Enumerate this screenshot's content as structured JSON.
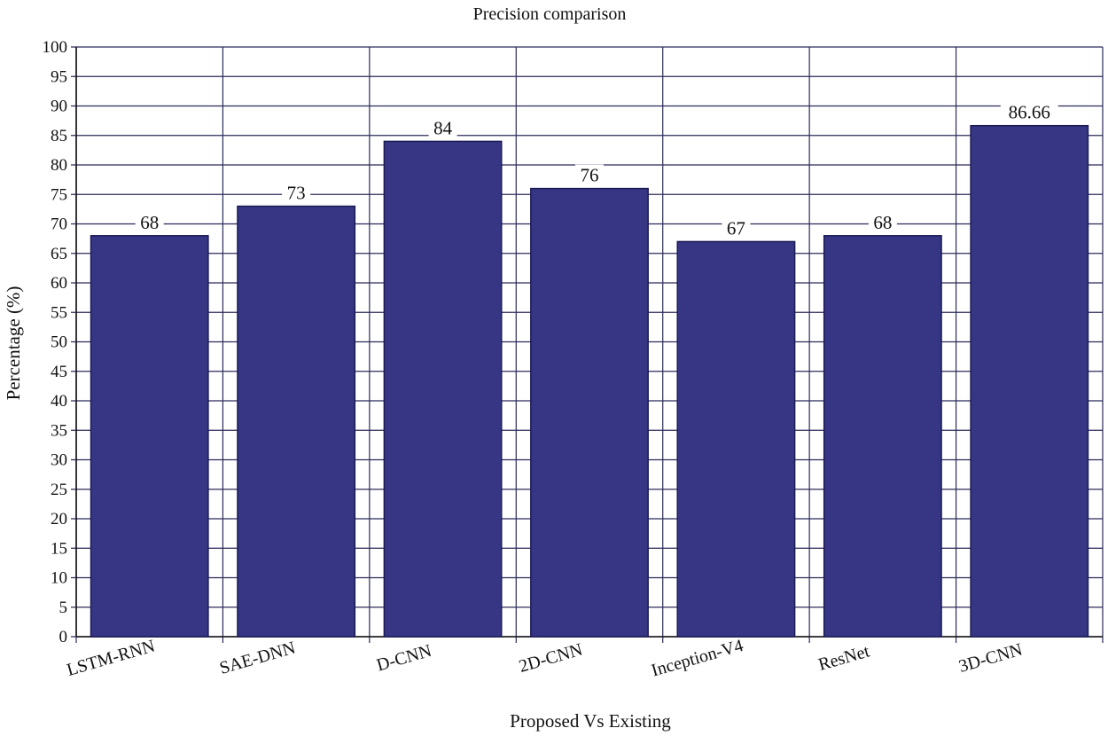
{
  "chart_data": {
    "type": "bar",
    "title": "Precision comparison",
    "xlabel": "Proposed Vs Existing",
    "ylabel": "Percentage (%)",
    "categories": [
      "LSTM-RNN",
      "SAE-DNN",
      "D-CNN",
      "2D-CNN",
      "Inception-V4",
      "ResNet",
      "3D-CNN"
    ],
    "values": [
      68,
      73,
      84,
      76,
      67,
      68,
      86.66
    ],
    "data_labels": [
      "68",
      "73",
      "84",
      "76",
      "67",
      "68",
      "86.66"
    ],
    "ylim": [
      0,
      100
    ],
    "ytick_step": 5,
    "grid": true,
    "legend": "none",
    "colors": {
      "bar": "#363685",
      "bar_border": "#1a1a55",
      "grid": "#2b2b5a",
      "label_bg": "#ffffff"
    }
  }
}
